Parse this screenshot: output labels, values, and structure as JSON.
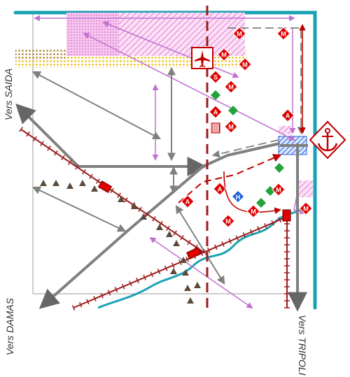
{
  "labels": {
    "saida": "Vers SAIDA",
    "damas": "Vers DAMAS",
    "tripoli": "Vers TRIPOLI"
  },
  "markers": {
    "m": "M",
    "a": "A",
    "s": "S",
    "h": "H"
  },
  "icons": {
    "airport": "plane-icon",
    "port": "anchor-icon"
  },
  "colors": {
    "coast": "#1aa1b4",
    "main_road": "#808080",
    "railway": "#9c1c1c",
    "red_line": "#c00000",
    "purple_arrow": "#c070d0",
    "pink_zone": "#f2a8e6",
    "yellow_band": "#f0b800",
    "green_marker": "#22a33a",
    "blue_marker": "#2060e0",
    "triangle": "#5a4a3a"
  }
}
